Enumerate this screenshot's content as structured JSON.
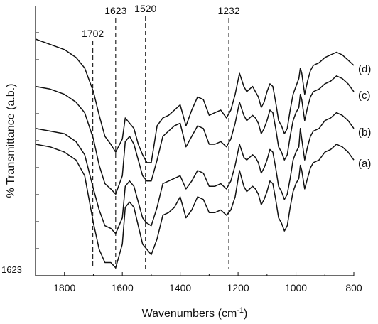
{
  "chart_data": {
    "type": "line",
    "title": "",
    "xlabel_main": "Wavenumbers (cm",
    "xlabel_sup": "-1",
    "xlabel_close": ")",
    "ylabel": "% Transmittance (a.b.)",
    "xlim": [
      1900,
      800
    ],
    "x_reversed": true,
    "xticks": [
      1800,
      1600,
      1400,
      1200,
      1000,
      800
    ],
    "xtick_labels": [
      "1800",
      "1600",
      "1400",
      "1200",
      "1000",
      "800"
    ],
    "y_ticks_unlabeled": true,
    "corner_label": "1623",
    "grid": false,
    "reference_lines": [
      {
        "x": 1702,
        "label": "1702"
      },
      {
        "x": 1623,
        "label": "1623"
      },
      {
        "x": 1520,
        "label": "1520"
      },
      {
        "x": 1232,
        "label": "1232"
      }
    ],
    "series": [
      {
        "name": "(a)",
        "x": [
          1900,
          1850,
          1800,
          1760,
          1730,
          1700,
          1680,
          1660,
          1640,
          1623,
          1600,
          1590,
          1575,
          1560,
          1545,
          1530,
          1515,
          1500,
          1480,
          1460,
          1440,
          1420,
          1400,
          1380,
          1360,
          1340,
          1320,
          1300,
          1280,
          1260,
          1240,
          1225,
          1210,
          1195,
          1180,
          1170,
          1160,
          1150,
          1140,
          1130,
          1120,
          1110,
          1100,
          1090,
          1080,
          1070,
          1060,
          1050,
          1040,
          1030,
          1020,
          1010,
          1000,
          990,
          985,
          980,
          970,
          960,
          950,
          940,
          920,
          900,
          880,
          860,
          840,
          820,
          800
        ],
        "y": [
          50,
          49,
          47,
          44,
          38,
          20,
          10,
          5,
          5,
          3,
          12,
          26,
          28,
          26,
          19,
          12,
          10,
          8,
          14,
          23,
          24,
          26,
          30,
          22,
          25,
          30,
          29,
          24,
          24,
          25,
          23,
          25,
          30,
          40,
          34,
          32,
          33,
          34,
          33,
          31,
          27,
          29,
          32,
          36,
          35,
          29,
          22,
          20,
          17,
          19,
          26,
          32,
          35,
          37,
          42,
          40,
          33,
          37,
          41,
          43,
          44,
          47,
          48,
          50,
          49,
          47,
          44
        ]
      },
      {
        "name": "(b)",
        "x": [
          1900,
          1850,
          1800,
          1760,
          1730,
          1700,
          1680,
          1660,
          1640,
          1623,
          1600,
          1590,
          1575,
          1560,
          1545,
          1530,
          1515,
          1500,
          1480,
          1460,
          1440,
          1420,
          1400,
          1380,
          1360,
          1340,
          1320,
          1300,
          1280,
          1260,
          1240,
          1225,
          1210,
          1195,
          1180,
          1170,
          1160,
          1150,
          1140,
          1130,
          1120,
          1110,
          1100,
          1090,
          1080,
          1070,
          1060,
          1050,
          1040,
          1030,
          1020,
          1010,
          1000,
          990,
          985,
          980,
          970,
          960,
          950,
          940,
          920,
          900,
          880,
          860,
          840,
          820,
          800
        ],
        "y": [
          56,
          55,
          54,
          51,
          46,
          33,
          25,
          19,
          18,
          16,
          22,
          34,
          36,
          34,
          28,
          22,
          20,
          19,
          26,
          35,
          36,
          37,
          38,
          33,
          36,
          40,
          39,
          34,
          34,
          35,
          33,
          36,
          42,
          50,
          45,
          44,
          45,
          46,
          45,
          43,
          39,
          41,
          44,
          48,
          47,
          41,
          34,
          32,
          29,
          31,
          37,
          44,
          47,
          49,
          56,
          52,
          44,
          49,
          53,
          55,
          56,
          59,
          60,
          62,
          61,
          59,
          56
        ]
      },
      {
        "name": "(c)",
        "x": [
          1900,
          1850,
          1800,
          1760,
          1730,
          1700,
          1680,
          1660,
          1640,
          1623,
          1600,
          1590,
          1575,
          1560,
          1545,
          1530,
          1515,
          1500,
          1480,
          1460,
          1440,
          1420,
          1400,
          1380,
          1360,
          1340,
          1320,
          1300,
          1280,
          1260,
          1240,
          1225,
          1210,
          1195,
          1180,
          1170,
          1160,
          1150,
          1140,
          1130,
          1120,
          1110,
          1100,
          1090,
          1080,
          1070,
          1060,
          1050,
          1040,
          1030,
          1020,
          1010,
          1000,
          990,
          985,
          980,
          970,
          960,
          950,
          940,
          920,
          900,
          880,
          860,
          840,
          820,
          800
        ],
        "y": [
          72,
          71,
          69,
          66,
          62,
          52,
          42,
          35,
          33,
          31,
          38,
          51,
          53,
          50,
          44,
          38,
          36,
          36,
          44,
          53,
          55,
          57,
          58,
          49,
          53,
          57,
          56,
          50,
          50,
          51,
          49,
          52,
          58,
          66,
          61,
          59,
          60,
          61,
          60,
          58,
          54,
          56,
          59,
          63,
          62,
          56,
          49,
          47,
          44,
          46,
          53,
          59,
          62,
          64,
          69,
          67,
          59,
          64,
          68,
          70,
          71,
          73,
          74,
          76,
          75,
          73,
          70
        ]
      },
      {
        "name": "(d)",
        "x": [
          1900,
          1850,
          1800,
          1760,
          1730,
          1700,
          1680,
          1660,
          1640,
          1623,
          1600,
          1590,
          1575,
          1560,
          1545,
          1530,
          1515,
          1500,
          1480,
          1460,
          1440,
          1420,
          1400,
          1380,
          1360,
          1340,
          1320,
          1300,
          1280,
          1260,
          1240,
          1225,
          1210,
          1195,
          1180,
          1170,
          1160,
          1150,
          1140,
          1130,
          1120,
          1110,
          1100,
          1090,
          1080,
          1070,
          1060,
          1050,
          1040,
          1030,
          1020,
          1010,
          1000,
          990,
          985,
          980,
          970,
          960,
          950,
          940,
          920,
          900,
          880,
          860,
          840,
          820,
          800
        ],
        "y": [
          90,
          88,
          86,
          83,
          79,
          70,
          61,
          53,
          50,
          47,
          52,
          60,
          58,
          56,
          50,
          46,
          43,
          43,
          57,
          60,
          61,
          63,
          65,
          57,
          63,
          68,
          67,
          61,
          62,
          63,
          60,
          63,
          69,
          77,
          72,
          70,
          71,
          72,
          70,
          68,
          64,
          66,
          70,
          73,
          72,
          66,
          59,
          57,
          54,
          56,
          63,
          69,
          72,
          75,
          79,
          77,
          69,
          74,
          78,
          80,
          81,
          83,
          84,
          85,
          84,
          82,
          80
        ]
      }
    ]
  }
}
